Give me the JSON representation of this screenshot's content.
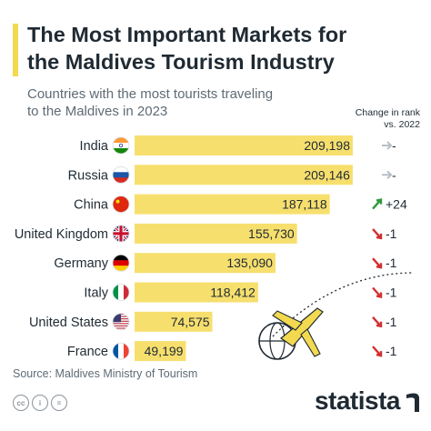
{
  "header": {
    "title_line1": "The Most Important Markets for",
    "title_line2": "the Maldives Tourism Industry",
    "subtitle_line1": "Countries with the most tourists traveling",
    "subtitle_line2": "to the Maldives in 2023",
    "rank_header_line1": "Change in rank",
    "rank_header_line2": "vs. 2022"
  },
  "footer": {
    "source": "Source: Maldives Ministry of Tourism",
    "cc_icons": [
      "creative-commons-icon",
      "attribution-icon",
      "equals-icon"
    ],
    "brand": "statista"
  },
  "colors": {
    "bar": "#f7df6e",
    "accent": "#f3d94f",
    "text": "#1f2a33",
    "up": "#2e9a3a",
    "down": "#d32f2f",
    "same": "#b8bfc6"
  },
  "chart_data": {
    "type": "bar",
    "orientation": "horizontal",
    "categories": [
      "India",
      "Russia",
      "China",
      "United Kingdom",
      "Germany",
      "Italy",
      "United States",
      "France"
    ],
    "values": [
      209198,
      209146,
      187118,
      155730,
      135090,
      118412,
      74575,
      49199
    ],
    "labels": [
      "209,198",
      "209,146",
      "187,118",
      "155,730",
      "135,090",
      "118,412",
      "74,575",
      "49,199"
    ],
    "flags": [
      "india-flag-icon",
      "russia-flag-icon",
      "china-flag-icon",
      "uk-flag-icon",
      "germany-flag-icon",
      "italy-flag-icon",
      "usa-flag-icon",
      "france-flag-icon"
    ],
    "rank_change": [
      {
        "label": "-",
        "direction": "same"
      },
      {
        "label": "-",
        "direction": "same"
      },
      {
        "label": "+24",
        "direction": "up"
      },
      {
        "label": "-1",
        "direction": "down"
      },
      {
        "label": "-1",
        "direction": "down"
      },
      {
        "label": "-1",
        "direction": "down"
      },
      {
        "label": "-1",
        "direction": "down"
      },
      {
        "label": "-1",
        "direction": "down"
      }
    ],
    "title": "The Most Important Markets for the Maldives Tourism Industry",
    "subtitle": "Countries with the most tourists traveling to the Maldives in 2023",
    "xlabel": "",
    "ylabel": "",
    "grid": false,
    "legend": "none"
  }
}
